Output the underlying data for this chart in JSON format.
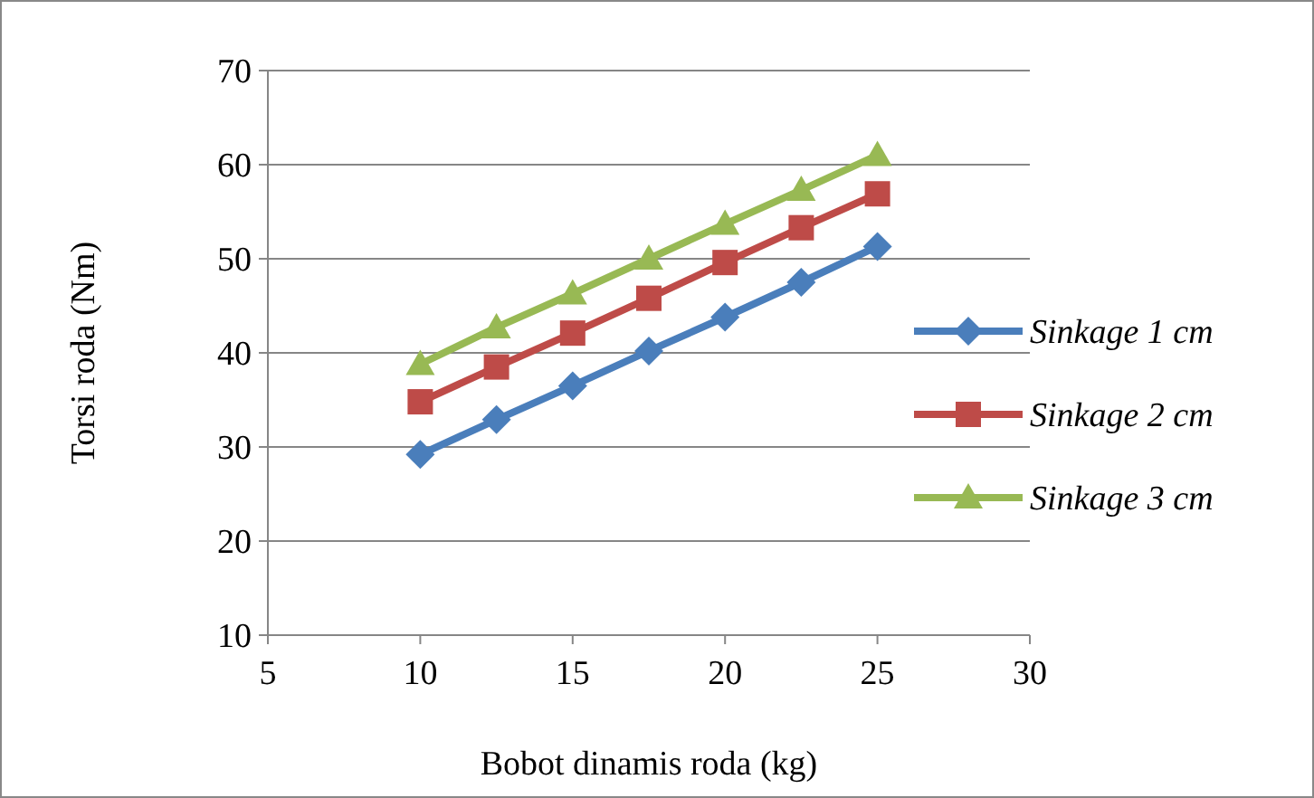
{
  "chart_data": {
    "type": "line",
    "xlabel": "Bobot dinamis roda (kg)",
    "ylabel": "Torsi roda (Nm)",
    "x": [
      10,
      12.5,
      15,
      17.5,
      20,
      22.5,
      25
    ],
    "xlim": [
      5,
      30
    ],
    "xticks": [
      5,
      10,
      15,
      20,
      25,
      30
    ],
    "ylim": [
      10,
      70
    ],
    "yticks": [
      10,
      20,
      30,
      40,
      50,
      60,
      70
    ],
    "grid": "y",
    "legend": "right",
    "series": [
      {
        "name": "Sinkage 1 cm",
        "color": "#4a7ebb",
        "marker": "diamond",
        "values": [
          29.2,
          32.9,
          36.5,
          40.2,
          43.8,
          47.5,
          51.3
        ]
      },
      {
        "name": "Sinkage 2 cm",
        "color": "#be4b48",
        "marker": "square",
        "values": [
          34.8,
          38.5,
          42.1,
          45.8,
          49.6,
          53.3,
          56.9
        ]
      },
      {
        "name": "Sinkage 3 cm",
        "color": "#98b954",
        "marker": "triangle",
        "values": [
          38.8,
          42.7,
          46.3,
          50,
          53.7,
          57.3,
          61
        ]
      }
    ]
  }
}
